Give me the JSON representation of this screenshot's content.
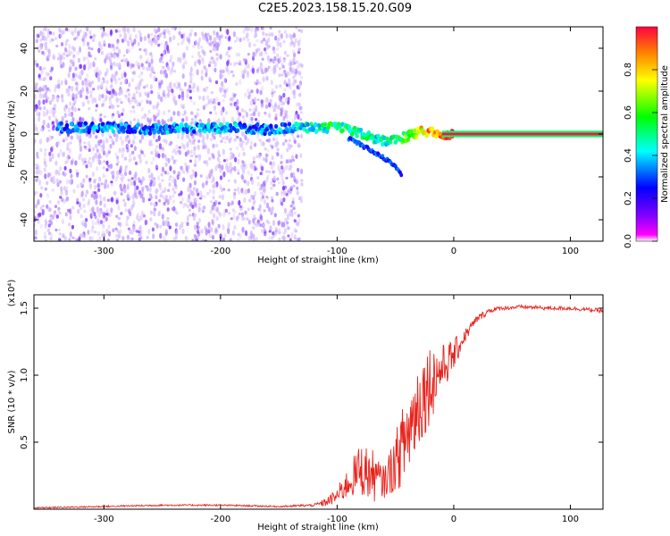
{
  "title": "C2E5.2023.158.15.20.G09",
  "chart_data": [
    {
      "type": "heatmap",
      "xlabel": "Height of straight line (km)",
      "ylabel": "Frequency (Hz)",
      "xlim": [
        -360,
        128
      ],
      "ylim": [
        -50,
        50
      ],
      "xticks": [
        -300,
        -200,
        -100,
        0,
        100
      ],
      "yticks": [
        -40,
        -20,
        0,
        20,
        40
      ],
      "colorbar": {
        "label": "Normalized spectral amplitude",
        "ticks": [
          0.0,
          0.2,
          0.4,
          0.6,
          0.8
        ],
        "range": [
          0,
          1
        ],
        "colormap": [
          "#ffffff",
          "#7a00ff",
          "#0000ff",
          "#00ffff",
          "#00ff00",
          "#ffff00",
          "#ff0000"
        ]
      },
      "ridge": {
        "x": [
          -340,
          -320,
          -300,
          -280,
          -260,
          -240,
          -220,
          -200,
          -180,
          -160,
          -140,
          -120,
          -100,
          -90,
          -80,
          -70,
          -60,
          -50,
          -40,
          -30,
          -20,
          -10,
          0,
          50,
          128
        ],
        "frequency": [
          3,
          3,
          3,
          3,
          2,
          3,
          3,
          3,
          3,
          2,
          3,
          3,
          3,
          2,
          0,
          -2,
          -3,
          -3,
          -1,
          1,
          1,
          0,
          0,
          0,
          0
        ],
        "amplitude": [
          0.3,
          0.3,
          0.35,
          0.3,
          0.3,
          0.35,
          0.35,
          0.35,
          0.35,
          0.3,
          0.4,
          0.45,
          0.5,
          0.5,
          0.5,
          0.45,
          0.45,
          0.5,
          0.6,
          0.75,
          0.85,
          0.9,
          1.0,
          1.0,
          1.0
        ]
      },
      "branch": {
        "x": [
          -90,
          -80,
          -70,
          -60,
          -50,
          -45
        ],
        "frequency": [
          -2,
          -5,
          -8,
          -11,
          -15,
          -19
        ]
      },
      "scatter_region": {
        "x": [
          -360,
          -130
        ],
        "frequency": [
          -50,
          50
        ]
      }
    },
    {
      "type": "line",
      "xlabel": "Height of straight line (km)",
      "ylabel": "SNR (10 * v/v)",
      "y_multiplier": "(x10⁴)",
      "xlim": [
        -360,
        128
      ],
      "ylim": [
        0,
        1.6
      ],
      "xticks": [
        -300,
        -200,
        -100,
        0,
        100
      ],
      "yticks": [
        0.5,
        1.0,
        1.5
      ],
      "ytick_labels": [
        "0.5",
        "1.0",
        "1.5"
      ],
      "series": [
        {
          "color": "#e8231c",
          "x": [
            -360,
            -300,
            -250,
            -200,
            -150,
            -120,
            -110,
            -100,
            -90,
            -80,
            -70,
            -60,
            -50,
            -40,
            -30,
            -20,
            -10,
            0,
            10,
            20,
            30,
            40,
            60,
            80,
            100,
            128
          ],
          "y": [
            0.01,
            0.02,
            0.03,
            0.03,
            0.02,
            0.03,
            0.05,
            0.1,
            0.2,
            0.3,
            0.25,
            0.2,
            0.35,
            0.55,
            0.8,
            0.95,
            1.05,
            1.15,
            1.3,
            1.42,
            1.48,
            1.5,
            1.51,
            1.5,
            1.5,
            1.48
          ],
          "amplitude": [
            0.005,
            0.006,
            0.006,
            0.006,
            0.006,
            0.01,
            0.03,
            0.06,
            0.12,
            0.2,
            0.2,
            0.12,
            0.22,
            0.35,
            0.35,
            0.3,
            0.18,
            0.12,
            0.05,
            0.03,
            0.02,
            0.015,
            0.015,
            0.015,
            0.015,
            0.015
          ]
        }
      ]
    }
  ]
}
